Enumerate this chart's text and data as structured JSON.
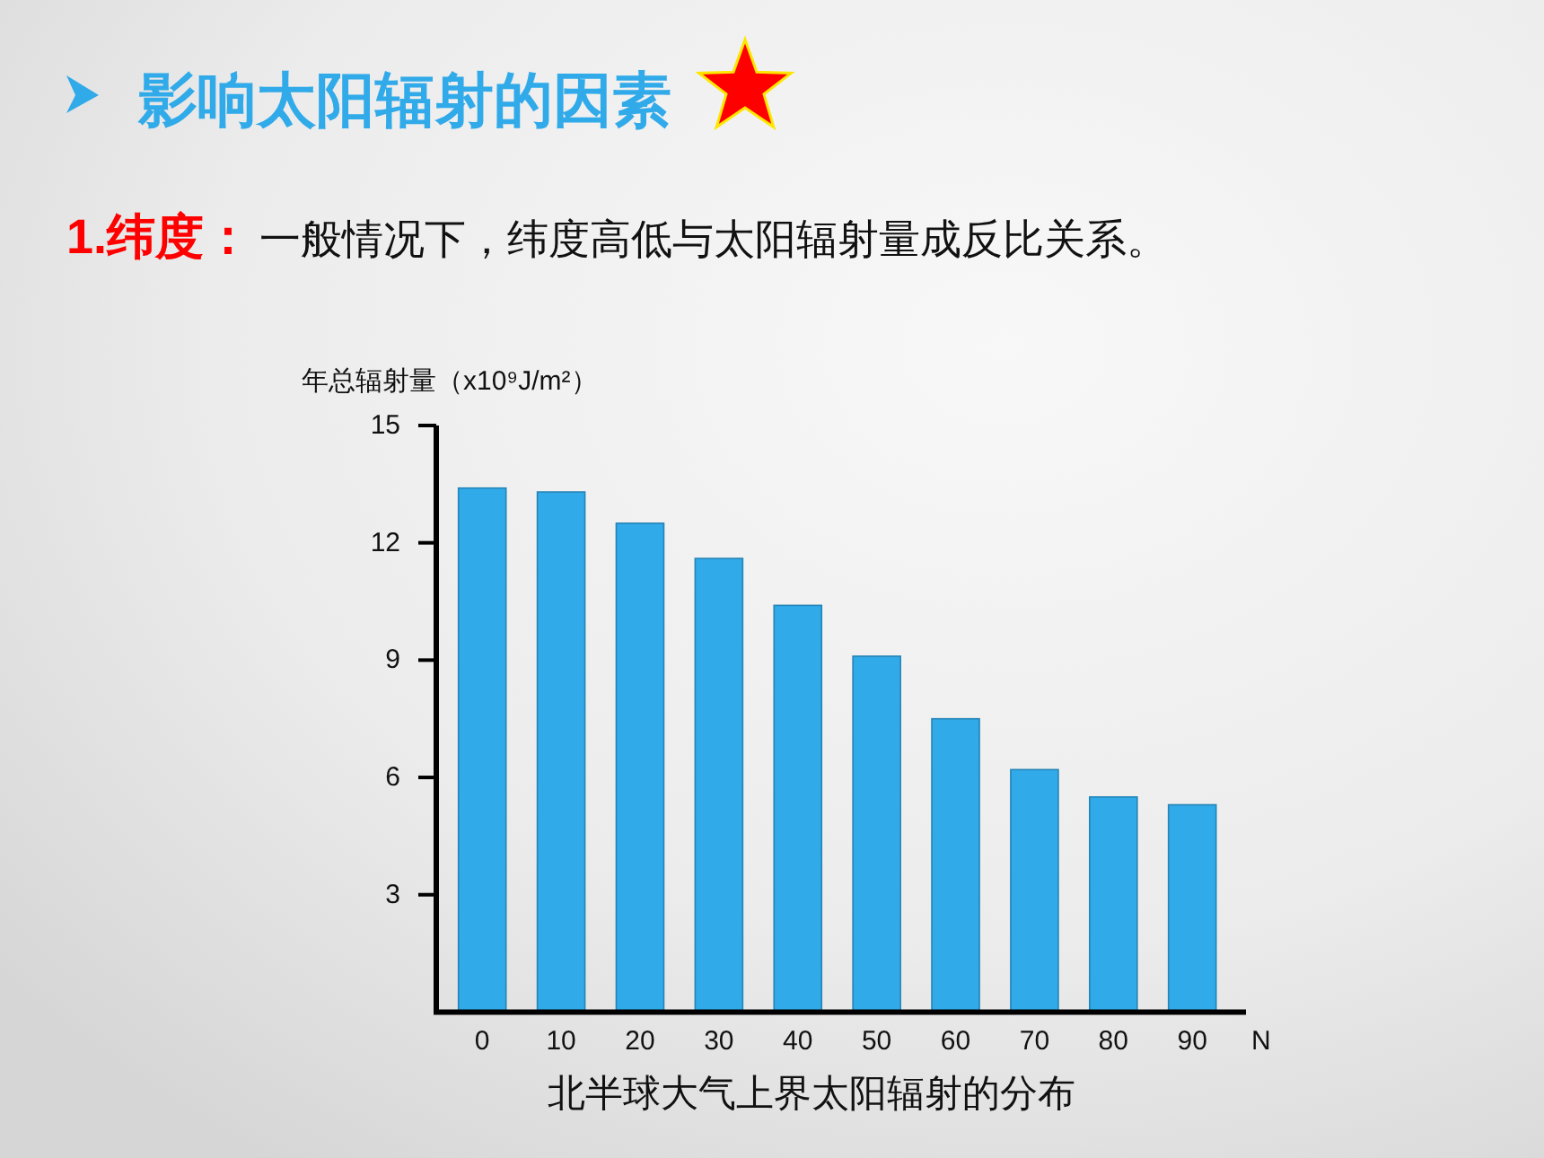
{
  "chart_data": {
    "type": "bar",
    "title": "影响太阳辐射的因素",
    "subtitle": "1.纬度：一般情况下，纬度高低与太阳辐射量成反比关系。",
    "ylabel": "年总辐射量（x10⁹J/m²）",
    "xlabel": "N",
    "annotations": [
      "北半球大气上界太阳辐射的分布"
    ],
    "categories": [
      "0",
      "10",
      "20",
      "30",
      "40",
      "50",
      "60",
      "70",
      "80",
      "90"
    ],
    "values": [
      13.4,
      13.3,
      12.5,
      11.6,
      10.4,
      9.1,
      7.5,
      6.2,
      5.5,
      5.3
    ],
    "color": "#30aae9",
    "ylim": [
      0,
      15
    ],
    "yticks": [
      3,
      6,
      9,
      12,
      15
    ]
  }
}
